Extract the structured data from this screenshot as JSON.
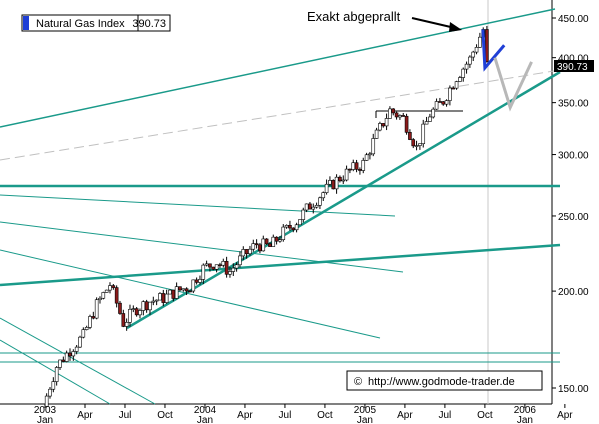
{
  "header": {
    "instrument": "Natural Gas Index",
    "last_value": "390.73"
  },
  "annotation": {
    "text": "Exakt abgeprallt"
  },
  "copyright": {
    "symbol": "©",
    "url": "http://www.godmode-trader.de"
  },
  "colors": {
    "trendline": "#1a9a8a",
    "up_candle": "#ffffff",
    "down_candle": "#8b1a1a",
    "projection_blue": "#1f3fd6",
    "projection_gray": "#b8b8b8",
    "price_tag_bg": "#000000",
    "price_tag_fg": "#ffffff"
  },
  "chart_data": {
    "type": "candlestick",
    "title": "Natural Gas Index",
    "y_scale": "log",
    "ylim": [
      140,
      460
    ],
    "yticks": [
      150,
      200,
      250,
      300,
      350,
      400,
      450
    ],
    "ytick_labels": [
      "150.00",
      "200.00",
      "250.00",
      "300.00",
      "350.00",
      "400.00",
      "450.00"
    ],
    "current_price_label": "390.73",
    "x_ticks": [
      {
        "label": "2003",
        "sub": "Jan",
        "date": "2003-01"
      },
      {
        "label": "",
        "sub": "Apr",
        "date": "2003-04"
      },
      {
        "label": "",
        "sub": "Jul",
        "date": "2003-07"
      },
      {
        "label": "",
        "sub": "Oct",
        "date": "2003-10"
      },
      {
        "label": "2004",
        "sub": "Jan",
        "date": "2004-01"
      },
      {
        "label": "",
        "sub": "Apr",
        "date": "2004-04"
      },
      {
        "label": "",
        "sub": "Jul",
        "date": "2004-07"
      },
      {
        "label": "",
        "sub": "Oct",
        "date": "2004-10"
      },
      {
        "label": "2005",
        "sub": "Jan",
        "date": "2005-01"
      },
      {
        "label": "",
        "sub": "Apr",
        "date": "2005-04"
      },
      {
        "label": "",
        "sub": "Jul",
        "date": "2005-07"
      },
      {
        "label": "",
        "sub": "Oct",
        "date": "2005-10"
      },
      {
        "label": "2006",
        "sub": "Jan",
        "date": "2006-01"
      },
      {
        "label": "",
        "sub": "Apr",
        "date": "2006-04"
      }
    ],
    "price_series": [
      [
        "2003-01",
        142
      ],
      [
        "2003-02",
        160
      ],
      [
        "2003-03",
        168
      ],
      [
        "2003-04",
        175
      ],
      [
        "2003-05",
        192
      ],
      [
        "2003-06",
        204
      ],
      [
        "2003-07",
        182
      ],
      [
        "2003-08",
        190
      ],
      [
        "2003-09",
        194
      ],
      [
        "2003-10",
        196
      ],
      [
        "2003-11",
        200
      ],
      [
        "2003-12",
        203
      ],
      [
        "2004-01",
        214
      ],
      [
        "2004-02",
        218
      ],
      [
        "2004-03",
        212
      ],
      [
        "2004-04",
        222
      ],
      [
        "2004-05",
        230
      ],
      [
        "2004-06",
        228
      ],
      [
        "2004-07",
        238
      ],
      [
        "2004-08",
        246
      ],
      [
        "2004-09",
        258
      ],
      [
        "2004-10",
        268
      ],
      [
        "2004-11",
        278
      ],
      [
        "2004-12",
        286
      ],
      [
        "2005-01",
        292
      ],
      [
        "2005-02",
        318
      ],
      [
        "2005-03",
        342
      ],
      [
        "2005-04",
        334
      ],
      [
        "2005-05",
        306
      ],
      [
        "2005-06",
        338
      ],
      [
        "2005-07",
        352
      ],
      [
        "2005-08",
        378
      ],
      [
        "2005-09",
        398
      ],
      [
        "2005-10",
        435
      ],
      [
        "2005-10b",
        391
      ]
    ],
    "projections": [
      {
        "name": "blue",
        "points": [
          [
            "2005-10",
            435
          ],
          [
            "2005-10",
            388
          ],
          [
            "2005-11",
            415
          ]
        ]
      },
      {
        "name": "gray",
        "points": [
          [
            "2005-10",
            400
          ],
          [
            "2005-11",
            345
          ],
          [
            "2005-12",
            395
          ]
        ]
      }
    ]
  }
}
